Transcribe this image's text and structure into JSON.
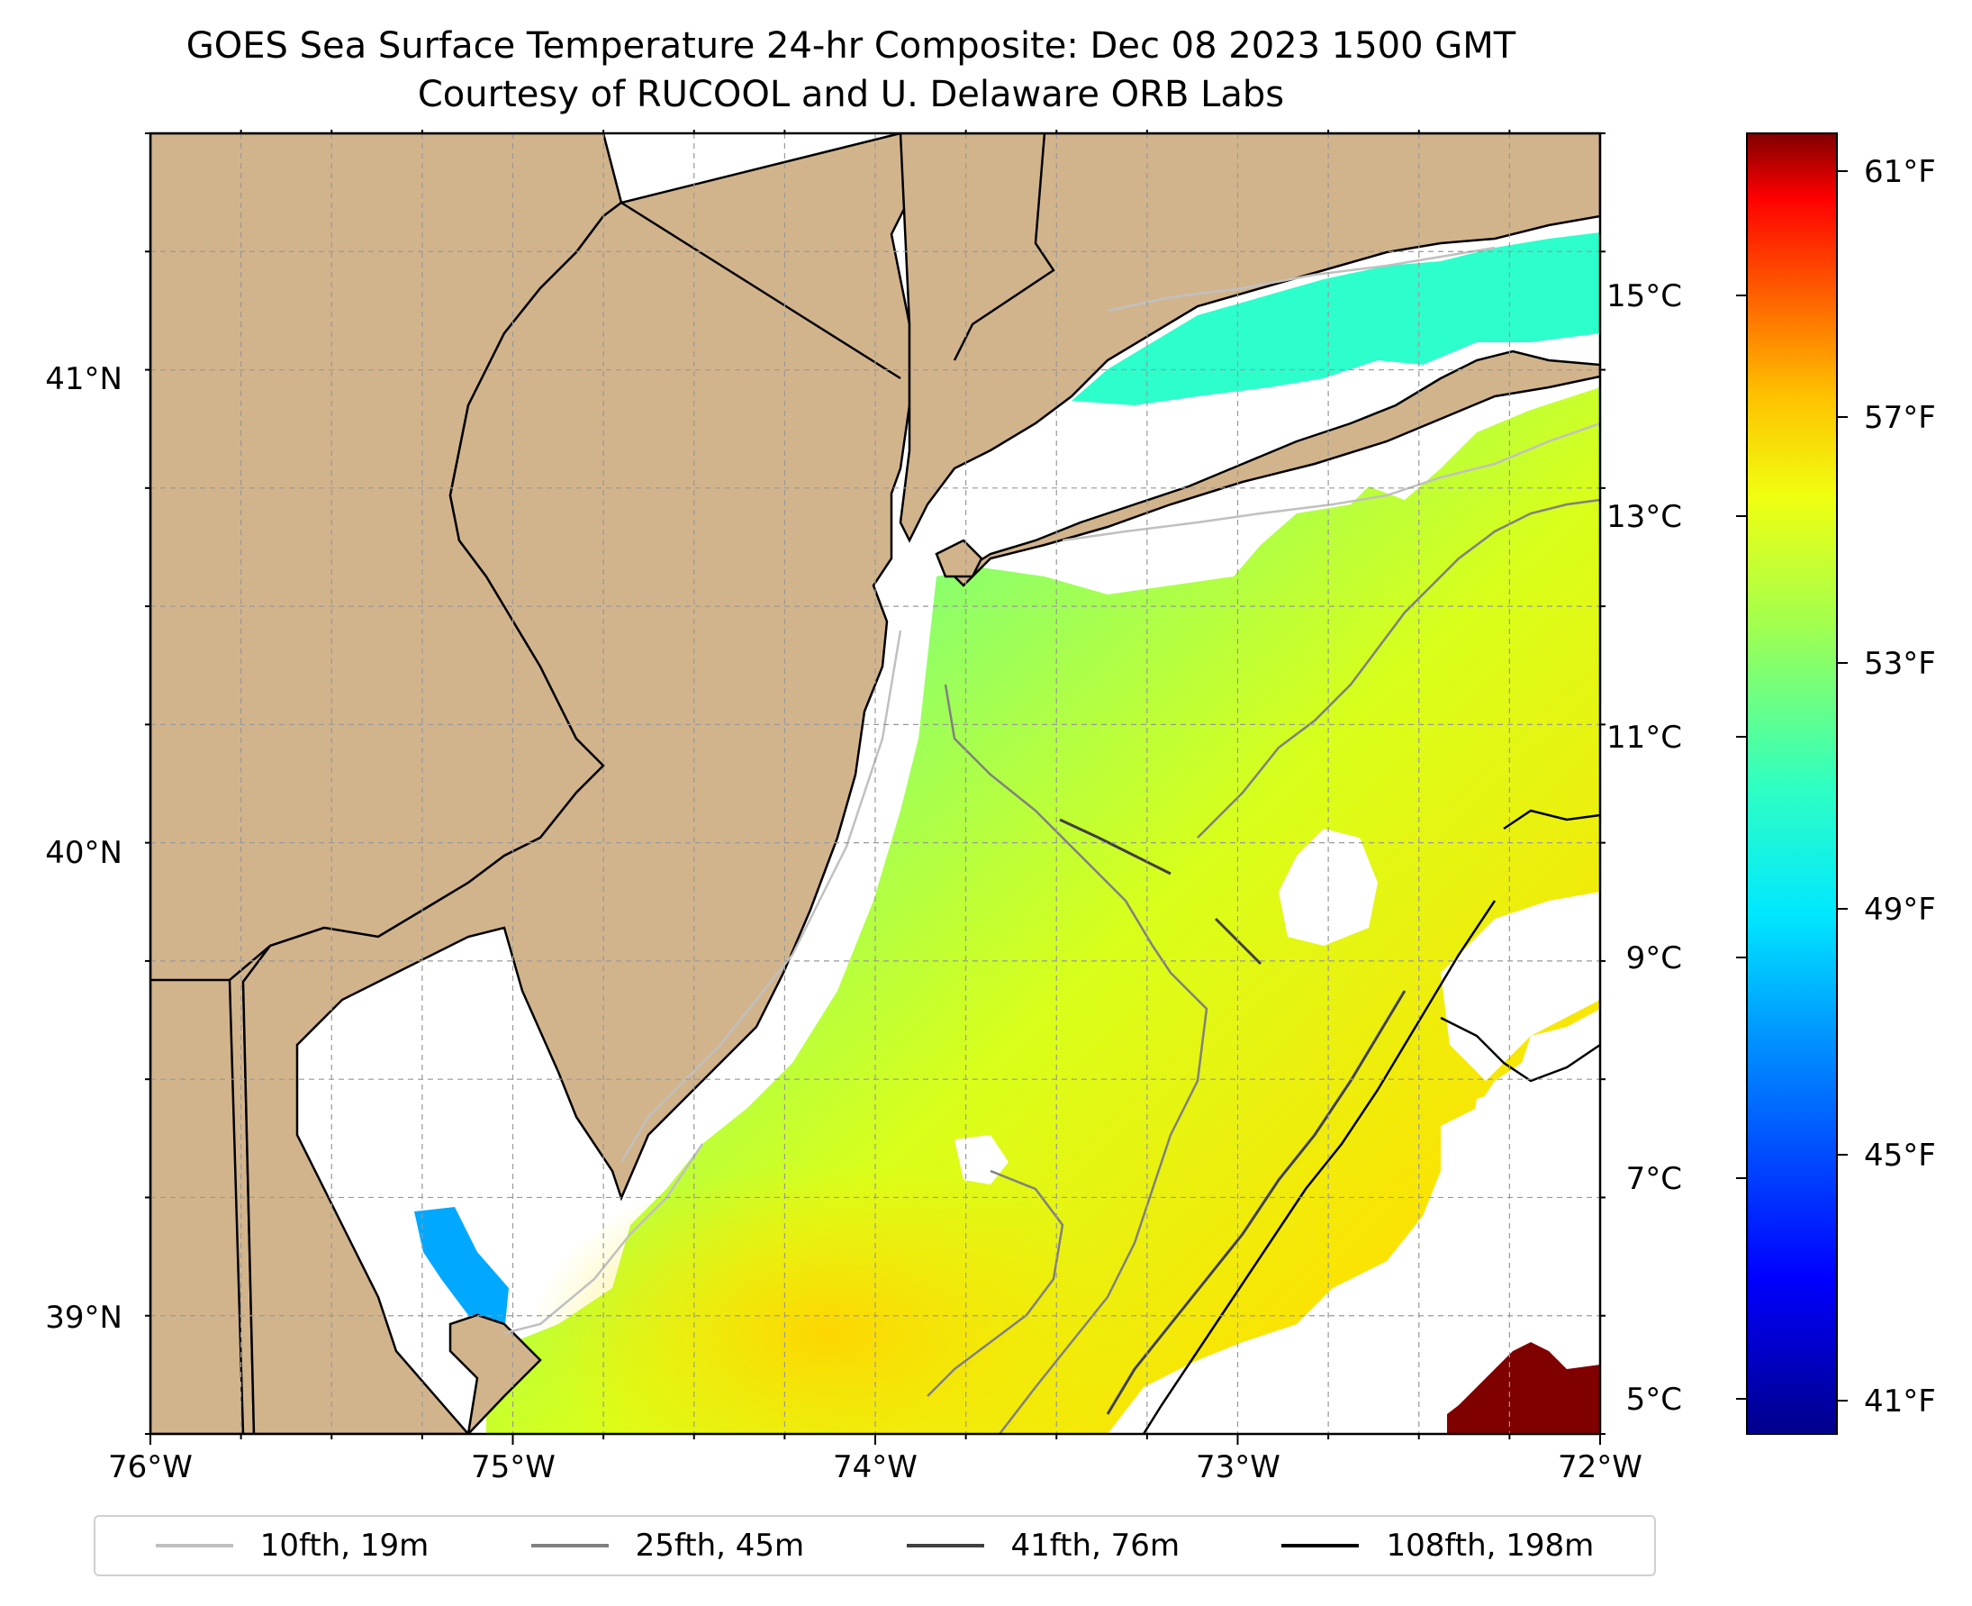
{
  "title": {
    "line1": "GOES Sea Surface Temperature 24-hr Composite: Dec 08 2023 1500 GMT",
    "line2": "Courtesy of RUCOOL and U. Delaware ORB Labs"
  },
  "map": {
    "lon_labels": [
      "76°W",
      "75°W",
      "74°W",
      "73°W",
      "72°W"
    ],
    "lat_labels": [
      "41°N",
      "40°N",
      "39°N"
    ],
    "lon_range": [
      -76,
      -72
    ],
    "lat_range": [
      38.75,
      41.5
    ],
    "land_color": "#d2b48c",
    "missing_color": "#ffffff",
    "grid": true
  },
  "colorbar": {
    "celsius_ticks": [
      "15°C",
      "13°C",
      "11°C",
      "9°C",
      "7°C",
      "5°C"
    ],
    "fahrenheit_ticks": [
      "61°F",
      "57°F",
      "53°F",
      "49°F",
      "45°F",
      "41°F"
    ],
    "colormap": "jet",
    "range_f": [
      40,
      62
    ]
  },
  "legend": [
    {
      "label": "10fth, 19m",
      "color": "#c0c0c0"
    },
    {
      "label": "25fth, 45m",
      "color": "#808080"
    },
    {
      "label": "41fth, 76m",
      "color": "#404040"
    },
    {
      "label": "108fth, 198m",
      "color": "#000000"
    }
  ]
}
